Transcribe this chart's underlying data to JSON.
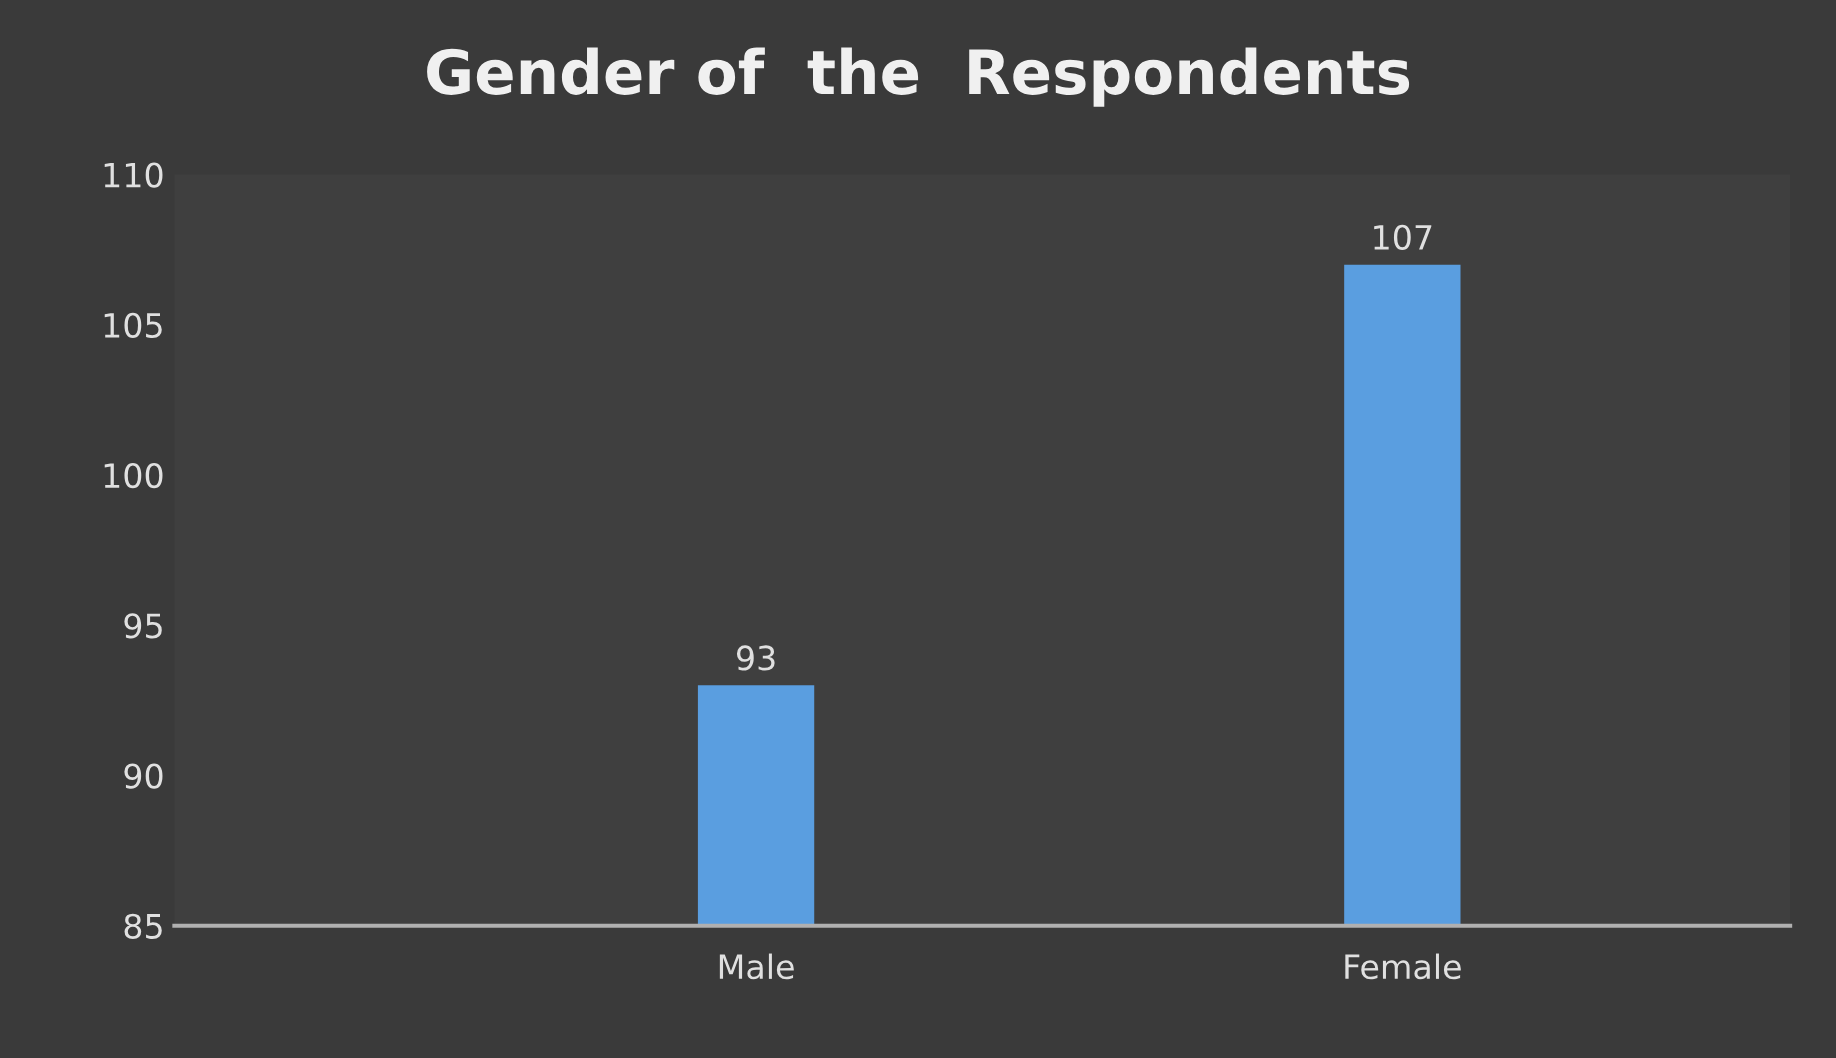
{
  "chart_data": {
    "type": "bar",
    "title": "Gender of  the  Respondents",
    "categories": [
      "Male",
      "Female"
    ],
    "values": [
      93,
      107
    ],
    "color": "#5a9ee0",
    "ylim": [
      85,
      110
    ],
    "yticks": [
      85,
      90,
      95,
      100,
      105,
      110
    ],
    "grid": false,
    "data_labels": true
  }
}
